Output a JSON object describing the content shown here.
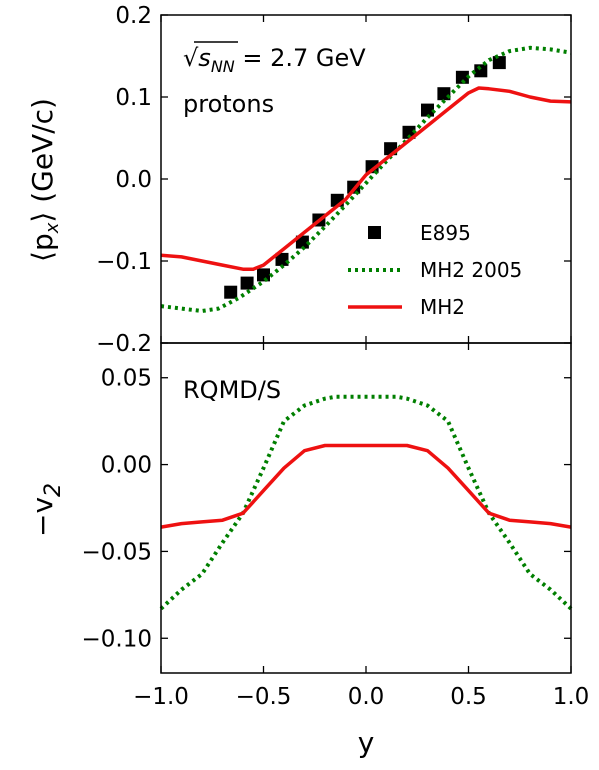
{
  "colors": {
    "e895": "#000000",
    "mh2_2005": "#007f00",
    "mh2": "#ee1111"
  },
  "chart_data": [
    {
      "type": "scatter",
      "panel": "top",
      "xlabel": "y",
      "ylabel": "⟨p_x⟩ (GeV/c)",
      "ylabel_main": "⟨p",
      "ylabel_sub": "x",
      "ylabel_tail": "⟩ (GeV/c)",
      "xlim": [
        -1.0,
        1.0
      ],
      "ylim": [
        -0.2,
        0.2
      ],
      "yticks": [
        -0.2,
        -0.1,
        0.0,
        0.1,
        0.2
      ],
      "ytick_labels": [
        "−0.2",
        "−0.1",
        "0.0",
        "0.1",
        "0.2"
      ],
      "annotations": {
        "energy_sqrt": "√",
        "energy_s": "s",
        "energy_sub": "NN",
        "energy_value": " = 2.7 GeV",
        "particle": "protons"
      },
      "legend_position": "lower-right",
      "series": [
        {
          "name": "E895",
          "style": "square-markers",
          "color_key": "e895",
          "x": [
            -0.66,
            -0.58,
            -0.5,
            -0.41,
            -0.31,
            -0.23,
            -0.14,
            -0.06,
            0.03,
            0.12,
            0.21,
            0.3,
            0.38,
            0.47,
            0.56,
            0.65
          ],
          "y": [
            -0.138,
            -0.127,
            -0.117,
            -0.098,
            -0.077,
            -0.05,
            -0.026,
            -0.01,
            0.015,
            0.037,
            0.057,
            0.084,
            0.104,
            0.124,
            0.132,
            0.142
          ]
        },
        {
          "name": "MH2 2005",
          "style": "dotted",
          "color_key": "mh2_2005",
          "x": [
            -1.0,
            -0.9,
            -0.8,
            -0.72,
            -0.62,
            -0.5,
            -0.4,
            -0.3,
            -0.2,
            -0.1,
            0.0,
            0.1,
            0.2,
            0.3,
            0.4,
            0.5,
            0.6,
            0.7,
            0.8,
            0.9,
            1.0
          ],
          "y": [
            -0.155,
            -0.158,
            -0.161,
            -0.158,
            -0.145,
            -0.125,
            -0.105,
            -0.083,
            -0.058,
            -0.032,
            -0.005,
            0.022,
            0.048,
            0.075,
            0.1,
            0.125,
            0.145,
            0.156,
            0.16,
            0.158,
            0.154
          ]
        },
        {
          "name": "MH2",
          "style": "solid",
          "color_key": "mh2",
          "x": [
            -1.0,
            -0.9,
            -0.8,
            -0.7,
            -0.6,
            -0.55,
            -0.5,
            -0.4,
            -0.3,
            -0.2,
            -0.1,
            0.0,
            0.1,
            0.2,
            0.3,
            0.4,
            0.5,
            0.55,
            0.6,
            0.7,
            0.8,
            0.9,
            1.0
          ],
          "y": [
            -0.093,
            -0.095,
            -0.1,
            -0.105,
            -0.11,
            -0.11,
            -0.105,
            -0.085,
            -0.065,
            -0.045,
            -0.025,
            0.005,
            0.025,
            0.045,
            0.065,
            0.085,
            0.105,
            0.111,
            0.11,
            0.107,
            0.1,
            0.095,
            0.094
          ]
        }
      ]
    },
    {
      "type": "line",
      "panel": "bottom",
      "xlabel": "y",
      "ylabel_main": "−v",
      "ylabel_sub": "2",
      "xlim": [
        -1.0,
        1.0
      ],
      "ylim": [
        -0.12,
        0.07
      ],
      "xticks": [
        -1.0,
        -0.5,
        0.0,
        0.5,
        1.0
      ],
      "xtick_labels": [
        "−1.0",
        "−0.5",
        "0.0",
        "0.5",
        "1.0"
      ],
      "yticks": [
        -0.1,
        -0.05,
        0.0,
        0.05
      ],
      "ytick_labels": [
        "−0.10",
        "−0.05",
        "0.00",
        "0.05"
      ],
      "annotations": {
        "model": "RQMD/S"
      },
      "series": [
        {
          "name": "MH2 2005",
          "style": "dotted",
          "color_key": "mh2_2005",
          "x": [
            -1.0,
            -0.9,
            -0.8,
            -0.7,
            -0.6,
            -0.5,
            -0.4,
            -0.3,
            -0.2,
            -0.15,
            0.0,
            0.15,
            0.2,
            0.3,
            0.4,
            0.5,
            0.6,
            0.7,
            0.8,
            0.9,
            1.0
          ],
          "y": [
            -0.083,
            -0.072,
            -0.063,
            -0.045,
            -0.028,
            -0.002,
            0.025,
            0.034,
            0.038,
            0.039,
            0.039,
            0.039,
            0.038,
            0.034,
            0.025,
            -0.002,
            -0.028,
            -0.045,
            -0.063,
            -0.072,
            -0.083
          ]
        },
        {
          "name": "MH2",
          "style": "solid",
          "color_key": "mh2",
          "x": [
            -1.0,
            -0.9,
            -0.8,
            -0.7,
            -0.6,
            -0.5,
            -0.4,
            -0.3,
            -0.2,
            -0.1,
            0.0,
            0.1,
            0.2,
            0.3,
            0.4,
            0.5,
            0.6,
            0.7,
            0.8,
            0.9,
            1.0
          ],
          "y": [
            -0.036,
            -0.034,
            -0.033,
            -0.032,
            -0.028,
            -0.015,
            -0.002,
            0.008,
            0.011,
            0.011,
            0.011,
            0.011,
            0.011,
            0.008,
            -0.002,
            -0.015,
            -0.028,
            -0.032,
            -0.033,
            -0.034,
            -0.036
          ]
        }
      ]
    }
  ]
}
